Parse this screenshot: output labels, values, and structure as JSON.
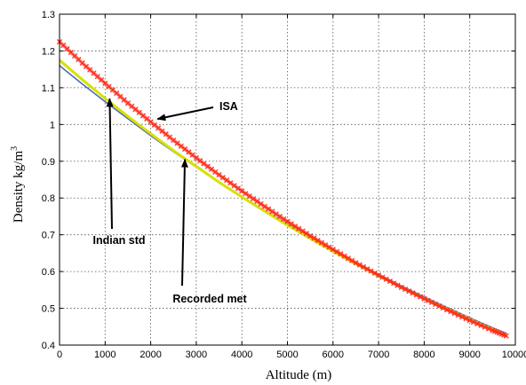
{
  "chart_data": {
    "type": "line",
    "xlabel": "Altitude (m)",
    "ylabel_main": "Density kg/m",
    "ylabel_sup": "3",
    "xlim": [
      0,
      10000
    ],
    "ylim": [
      0.4,
      1.3
    ],
    "xticks": [
      0,
      1000,
      2000,
      3000,
      4000,
      5000,
      6000,
      7000,
      8000,
      9000,
      10000
    ],
    "yticks": [
      0.4,
      0.5,
      0.6,
      0.7,
      0.8,
      0.9,
      1,
      1.1,
      1.2,
      1.3
    ],
    "grid": true,
    "series": [
      {
        "name": "ISA",
        "color": "#ff2a1a",
        "marker": "x",
        "x": [
          0,
          500,
          1000,
          1500,
          2000,
          2500,
          3000,
          3500,
          4000,
          4500,
          5000,
          5500,
          6000,
          6500,
          7000,
          7500,
          8000,
          8500,
          9000,
          9500,
          9800
        ],
        "y": [
          1.225,
          1.167,
          1.112,
          1.058,
          1.007,
          0.957,
          0.909,
          0.863,
          0.819,
          0.777,
          0.736,
          0.697,
          0.66,
          0.624,
          0.59,
          0.557,
          0.526,
          0.496,
          0.467,
          0.44,
          0.425
        ]
      },
      {
        "name": "Indian std",
        "color": "#d8e000",
        "marker": "none",
        "x": [
          0,
          500,
          1000,
          1500,
          2000,
          2500,
          3000,
          3500,
          4000,
          4500,
          5000,
          5500,
          6000,
          6500,
          7000,
          7500,
          8000,
          8500,
          9000,
          9500,
          9800
        ],
        "y": [
          1.175,
          1.122,
          1.071,
          1.022,
          0.975,
          0.929,
          0.886,
          0.843,
          0.803,
          0.764,
          0.726,
          0.69,
          0.655,
          0.621,
          0.589,
          0.557,
          0.527,
          0.498,
          0.47,
          0.443,
          0.427
        ]
      },
      {
        "name": "Recorded met",
        "color": "#4a6fb5",
        "marker": "none",
        "x": [
          0,
          500,
          1000,
          1500,
          2000,
          2500,
          3000,
          3500,
          4000,
          4500,
          5000,
          5500,
          6000,
          6500,
          7000,
          7500,
          8000,
          8500,
          9000,
          9500,
          9800
        ],
        "y": [
          1.16,
          1.11,
          1.062,
          1.016,
          0.97,
          0.926,
          0.884,
          0.843,
          0.804,
          0.766,
          0.729,
          0.693,
          0.658,
          0.624,
          0.592,
          0.561,
          0.531,
          0.502,
          0.474,
          0.447,
          0.432
        ]
      }
    ],
    "annotations": [
      {
        "text": "ISA",
        "target_x": 2150,
        "target_y": 1.015
      },
      {
        "text": "Indian std",
        "target_x": 1100,
        "target_y": 1.07
      },
      {
        "text": "Recorded met",
        "target_x": 2750,
        "target_y": 0.905
      }
    ]
  }
}
